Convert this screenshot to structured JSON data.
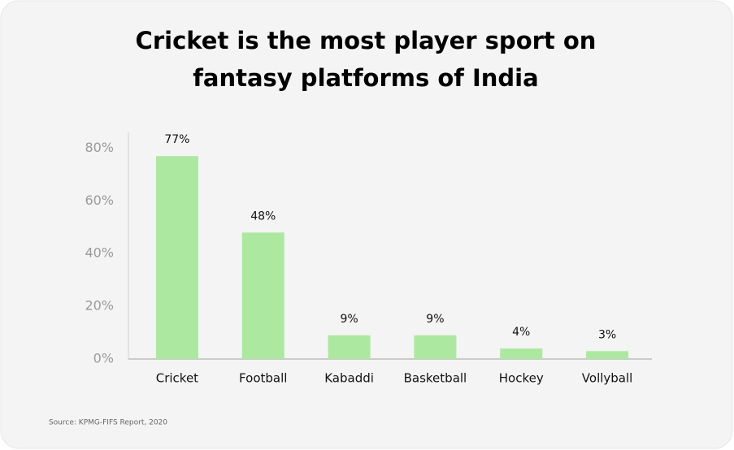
{
  "chart_data": {
    "type": "bar",
    "title": "Cricket is the most player sport on fantasy platforms of India",
    "categories": [
      "Cricket",
      "Football",
      "Kabaddi",
      "Basketball",
      "Hockey",
      "Vollyball"
    ],
    "values": [
      77,
      48,
      9,
      9,
      4,
      3
    ],
    "value_labels": [
      "77%",
      "48%",
      "9%",
      "9%",
      "4%",
      "3%"
    ],
    "color": "#ade8a0",
    "ylim": [
      0,
      86
    ],
    "yticks": [
      {
        "value": 0,
        "label": "0%"
      },
      {
        "value": 20,
        "label": "20%"
      },
      {
        "value": 40,
        "label": "40%"
      },
      {
        "value": 60,
        "label": "60%"
      },
      {
        "value": 80,
        "label": "80%"
      }
    ],
    "grid": false,
    "source": "Source: KPMG-FIFS Report, 2020"
  }
}
